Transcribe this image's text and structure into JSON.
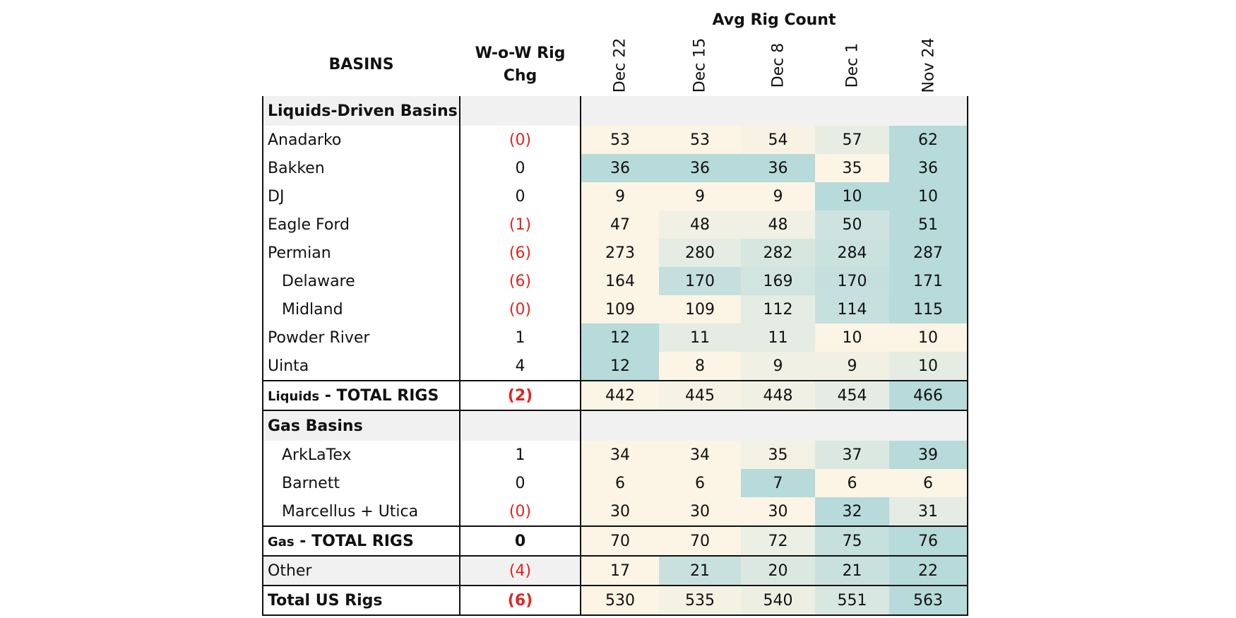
{
  "table": {
    "avg_rig_count_label": "Avg Rig Count",
    "basins_label": "BASINS",
    "wow_label_line1": "W-o-W Rig",
    "wow_label_line2": "Chg",
    "dates": [
      "Dec 22",
      "Dec 15",
      "Dec 8",
      "Dec 1",
      "Nov 24"
    ],
    "sections": {
      "liquids": "Liquids-Driven Basins",
      "gas": "Gas Basins"
    },
    "rows": [
      {
        "name": "Anadarko",
        "chg": "(0)",
        "values": [
          "53",
          "53",
          "54",
          "57",
          "62"
        ]
      },
      {
        "name": "Bakken",
        "chg": "0",
        "values": [
          "36",
          "36",
          "36",
          "35",
          "36"
        ]
      },
      {
        "name": "DJ",
        "chg": "0",
        "values": [
          "9",
          "9",
          "9",
          "10",
          "10"
        ]
      },
      {
        "name": "Eagle Ford",
        "chg": "(1)",
        "values": [
          "47",
          "48",
          "48",
          "50",
          "51"
        ]
      },
      {
        "name": "Permian",
        "chg": "(6)",
        "values": [
          "273",
          "280",
          "282",
          "284",
          "287"
        ]
      },
      {
        "name": "Delaware",
        "chg": "(6)",
        "values": [
          "164",
          "170",
          "169",
          "170",
          "171"
        ]
      },
      {
        "name": "Midland",
        "chg": "(0)",
        "values": [
          "109",
          "109",
          "112",
          "114",
          "115"
        ]
      },
      {
        "name": "Powder River",
        "chg": "1",
        "values": [
          "12",
          "11",
          "11",
          "10",
          "10"
        ]
      },
      {
        "name": "Uinta",
        "chg": "4",
        "values": [
          "12",
          "8",
          "9",
          "9",
          "10"
        ]
      },
      {
        "name_prefix": "Liquids",
        "name_suffix": " - TOTAL RIGS",
        "chg": "(2)",
        "values": [
          "442",
          "445",
          "448",
          "454",
          "466"
        ]
      },
      {
        "name": "ArkLaTex",
        "chg": "1",
        "values": [
          "34",
          "34",
          "35",
          "37",
          "39"
        ]
      },
      {
        "name": "Barnett",
        "chg": "0",
        "values": [
          "6",
          "6",
          "7",
          "6",
          "6"
        ]
      },
      {
        "name": "Marcellus + Utica",
        "chg": "(0)",
        "values": [
          "30",
          "30",
          "30",
          "32",
          "31"
        ]
      },
      {
        "name_prefix": "Gas",
        "name_suffix": " - TOTAL RIGS",
        "chg": "0",
        "values": [
          "70",
          "70",
          "72",
          "75",
          "76"
        ]
      },
      {
        "name": "Other",
        "chg": "(4)",
        "values": [
          "17",
          "21",
          "20",
          "21",
          "22"
        ]
      },
      {
        "name": "Total US Rigs",
        "chg": "(6)",
        "values": [
          "530",
          "535",
          "540",
          "551",
          "563"
        ]
      }
    ],
    "colors": {
      "low": "#fcf4e4",
      "mid": "#e4ece3",
      "high": "#b7dada",
      "negative_text": "#e0261f",
      "section_fill": "#f1f1f1"
    }
  }
}
